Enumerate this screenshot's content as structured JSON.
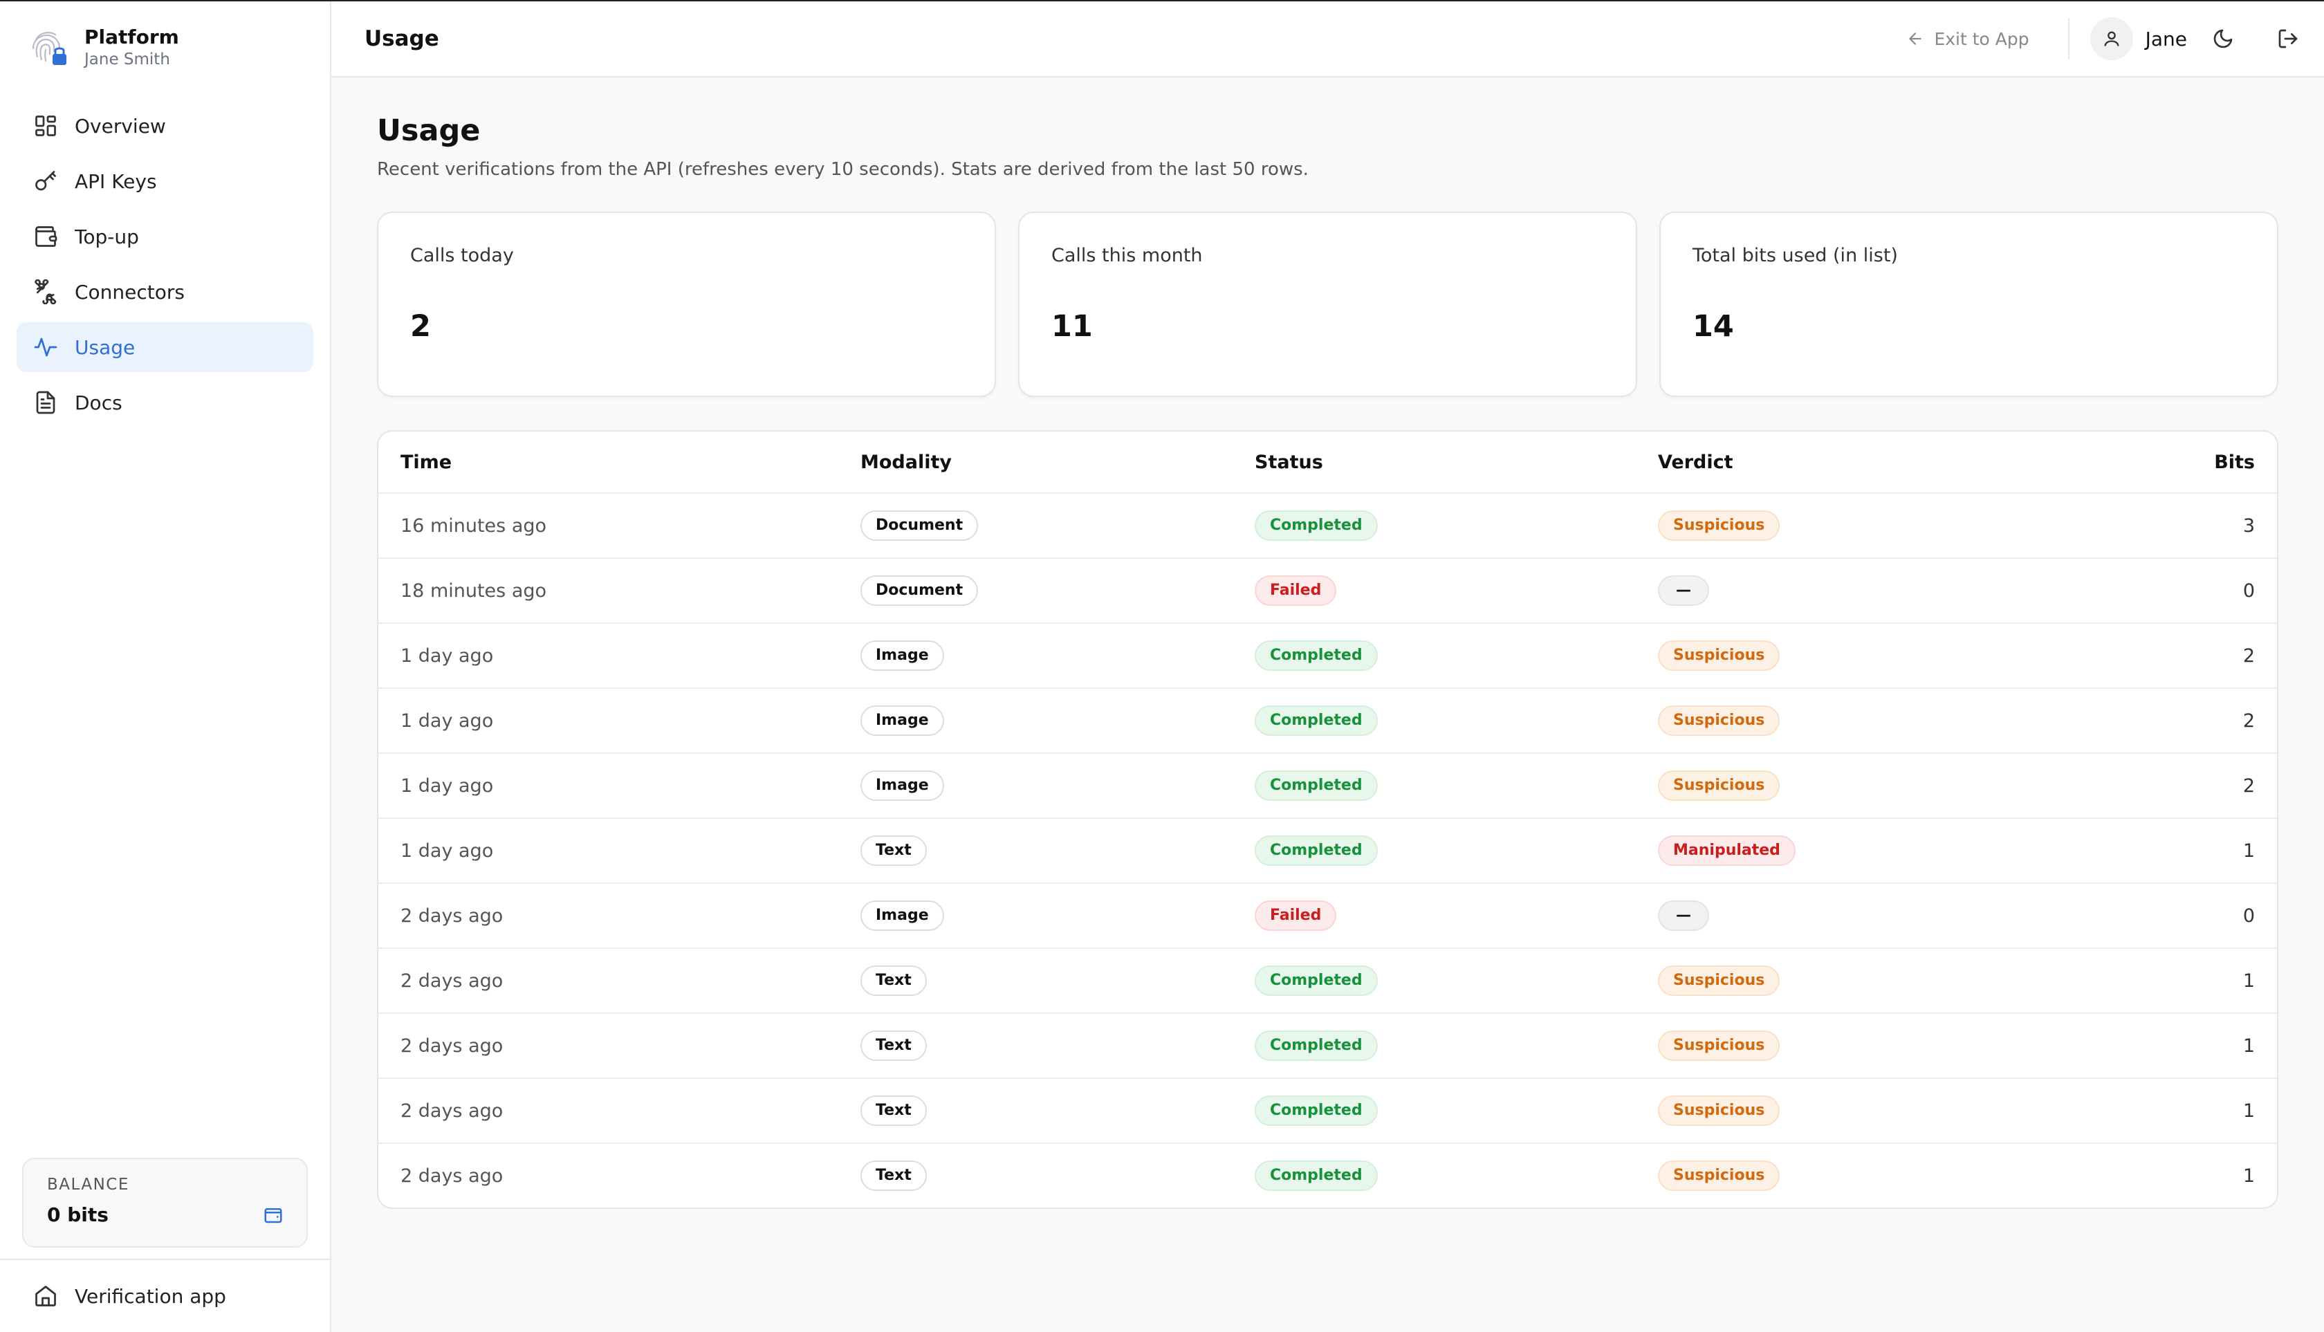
{
  "brand": {
    "name": "Platform",
    "user": "Jane Smith"
  },
  "nav": [
    {
      "label": "Overview",
      "icon": "grid-icon",
      "active": false
    },
    {
      "label": "API Keys",
      "icon": "key-icon",
      "active": false
    },
    {
      "label": "Top-up",
      "icon": "wallet-icon",
      "active": false
    },
    {
      "label": "Connectors",
      "icon": "puzzle-icon",
      "active": false
    },
    {
      "label": "Usage",
      "icon": "activity-icon",
      "active": true
    },
    {
      "label": "Docs",
      "icon": "document-icon",
      "active": false
    }
  ],
  "balance": {
    "label": "BALANCE",
    "value": "0 bits"
  },
  "footer": {
    "label": "Verification app"
  },
  "topbar": {
    "title": "Usage",
    "exit_label": "Exit to App",
    "user_name": "Jane"
  },
  "page": {
    "title": "Usage",
    "subtitle": "Recent verifications from the API (refreshes every 10 seconds). Stats are derived from the last 50 rows."
  },
  "stats": [
    {
      "label": "Calls today",
      "value": "2"
    },
    {
      "label": "Calls this month",
      "value": "11"
    },
    {
      "label": "Total bits used (in list)",
      "value": "14"
    }
  ],
  "table": {
    "columns": [
      "Time",
      "Modality",
      "Status",
      "Verdict",
      "Bits"
    ],
    "rows": [
      {
        "time": "16 minutes ago",
        "modality": "Document",
        "status": "Completed",
        "verdict": "Suspicious",
        "bits": "3"
      },
      {
        "time": "18 minutes ago",
        "modality": "Document",
        "status": "Failed",
        "verdict": "—",
        "bits": "0"
      },
      {
        "time": "1 day ago",
        "modality": "Image",
        "status": "Completed",
        "verdict": "Suspicious",
        "bits": "2"
      },
      {
        "time": "1 day ago",
        "modality": "Image",
        "status": "Completed",
        "verdict": "Suspicious",
        "bits": "2"
      },
      {
        "time": "1 day ago",
        "modality": "Image",
        "status": "Completed",
        "verdict": "Suspicious",
        "bits": "2"
      },
      {
        "time": "1 day ago",
        "modality": "Text",
        "status": "Completed",
        "verdict": "Manipulated",
        "bits": "1"
      },
      {
        "time": "2 days ago",
        "modality": "Image",
        "status": "Failed",
        "verdict": "—",
        "bits": "0"
      },
      {
        "time": "2 days ago",
        "modality": "Text",
        "status": "Completed",
        "verdict": "Suspicious",
        "bits": "1"
      },
      {
        "time": "2 days ago",
        "modality": "Text",
        "status": "Completed",
        "verdict": "Suspicious",
        "bits": "1"
      },
      {
        "time": "2 days ago",
        "modality": "Text",
        "status": "Completed",
        "verdict": "Suspicious",
        "bits": "1"
      },
      {
        "time": "2 days ago",
        "modality": "Text",
        "status": "Completed",
        "verdict": "Suspicious",
        "bits": "1"
      }
    ]
  },
  "colors": {
    "accent": "#2f6fd6",
    "success": "#17913c",
    "danger": "#c81e1e",
    "warning": "#d16a0f"
  }
}
